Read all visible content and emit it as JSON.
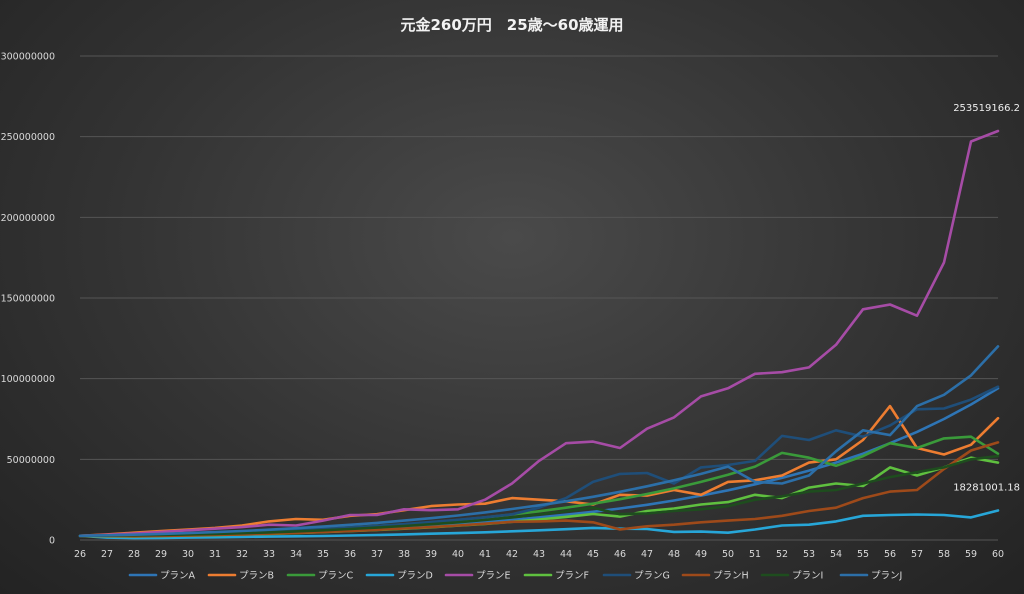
{
  "chart_data": {
    "type": "line",
    "title": "元金260万円　25歳～60歳運用",
    "xlabel": "",
    "ylabel": "",
    "ylim": [
      0,
      300000000
    ],
    "yticks": [
      0,
      50000000,
      100000000,
      150000000,
      200000000,
      250000000,
      300000000
    ],
    "grid": true,
    "legend": "bottom",
    "x": [
      26,
      27,
      28,
      29,
      30,
      31,
      32,
      33,
      34,
      35,
      36,
      37,
      38,
      39,
      40,
      41,
      42,
      43,
      44,
      45,
      46,
      47,
      48,
      49,
      50,
      51,
      52,
      53,
      54,
      55,
      56,
      57,
      58,
      59,
      60
    ],
    "series": [
      {
        "name": "プランA",
        "color": "#2e75b6",
        "values": [
          2600000,
          2700000,
          2900000,
          3200000,
          3500000,
          3800000,
          4200000,
          4700000,
          5200000,
          5800000,
          6500000,
          7200000,
          8000000,
          9000000,
          10000000,
          11200000,
          12500000,
          14000000,
          15700000,
          17500000,
          19500000,
          21800000,
          24500000,
          27500000,
          30800000,
          34500000,
          38500000,
          43000000,
          48000000,
          53500000,
          60000000,
          67000000,
          75000000,
          84000000,
          94000000
        ]
      },
      {
        "name": "プランB",
        "color": "#ed7d31",
        "values": [
          2600000,
          3500000,
          4500000,
          5500000,
          6500000,
          7500000,
          9000000,
          11500000,
          13000000,
          12500000,
          15000000,
          16000000,
          18500000,
          21000000,
          22000000,
          22500000,
          26000000,
          25000000,
          24000000,
          22000000,
          28000000,
          27500000,
          31000000,
          28000000,
          36000000,
          37000000,
          40000000,
          48000000,
          50000000,
          62000000,
          83000000,
          57000000,
          53000000,
          59000000,
          75500000
        ]
      },
      {
        "name": "プランC",
        "color": "#3a9a3a",
        "values": [
          2600000,
          2800000,
          3000000,
          3300000,
          3700000,
          4100000,
          4600000,
          5200000,
          5900000,
          6700000,
          7600000,
          8600000,
          9700000,
          11000000,
          12400000,
          14000000,
          15800000,
          17800000,
          20000000,
          22500000,
          25300000,
          28500000,
          32000000,
          36000000,
          40500000,
          45500000,
          54000000,
          51000000,
          46000000,
          52000000,
          60000000,
          57000000,
          63000000,
          64000000,
          53500000
        ]
      },
      {
        "name": "プランD",
        "color": "#27a6d8",
        "values": [
          2600000,
          1500000,
          1200000,
          1300000,
          1500000,
          1700000,
          1900000,
          2100000,
          2300000,
          2500000,
          2800000,
          3100000,
          3500000,
          3900000,
          4300000,
          4800000,
          5400000,
          6000000,
          6700000,
          7500000,
          7000000,
          6800000,
          5000000,
          5200000,
          4500000,
          6500000,
          9000000,
          9500000,
          11500000,
          15000000,
          15500000,
          15800000,
          15500000,
          14000000,
          18281001.18
        ]
      },
      {
        "name": "プランE",
        "color": "#a64ca6",
        "values": [
          2600000,
          3200000,
          4000000,
          5000000,
          6000000,
          7000000,
          8000000,
          9500000,
          9000000,
          12000000,
          15500000,
          15500000,
          19000000,
          18500000,
          19000000,
          25000000,
          35000000,
          49000000,
          60000000,
          61000000,
          57000000,
          69000000,
          76000000,
          89000000,
          94000000,
          103000000,
          104000000,
          107000000,
          121000000,
          143000000,
          146000000,
          139000000,
          172000000,
          247000000,
          253519166.2
        ]
      },
      {
        "name": "プランF",
        "color": "#5fc03f",
        "values": [
          2600000,
          2300000,
          2200000,
          2400000,
          2700000,
          3000000,
          3400000,
          3800000,
          4300000,
          4900000,
          5500000,
          6200000,
          7000000,
          7900000,
          8900000,
          10000000,
          11300000,
          12700000,
          14300000,
          16100000,
          14500000,
          18000000,
          19500000,
          22000000,
          23500000,
          28000000,
          26000000,
          32500000,
          35000000,
          33500000,
          45000000,
          40000000,
          45000000,
          51000000,
          48000000
        ]
      },
      {
        "name": "プランG",
        "color": "#1f4e79",
        "values": [
          2600000,
          2800000,
          3100000,
          3400000,
          3800000,
          4200000,
          4700000,
          5300000,
          6000000,
          6800000,
          7700000,
          8700000,
          9800000,
          11100000,
          12500000,
          14100000,
          15900000,
          20000000,
          26000000,
          36000000,
          41000000,
          41500000,
          35000000,
          45000000,
          46500000,
          49000000,
          64500000,
          62000000,
          68000000,
          64000000,
          71000000,
          81000000,
          81500000,
          87000000,
          95000000
        ]
      },
      {
        "name": "プランH",
        "color": "#9e4a1a",
        "values": [
          2600000,
          2400000,
          2300000,
          2500000,
          2800000,
          3100000,
          3500000,
          3900000,
          4400000,
          5000000,
          5600000,
          6300000,
          7100000,
          8000000,
          9000000,
          10100000,
          11300000,
          11500000,
          12000000,
          11000000,
          6500000,
          8500000,
          9500000,
          11000000,
          12000000,
          13000000,
          15000000,
          18000000,
          20000000,
          26000000,
          30000000,
          31000000,
          44000000,
          55500000,
          60500000
        ]
      },
      {
        "name": "プランI",
        "color": "#1e4d1e",
        "values": [
          2600000,
          2700000,
          2900000,
          3100000,
          3400000,
          3800000,
          4200000,
          4700000,
          5300000,
          6000000,
          6800000,
          7700000,
          8700000,
          9800000,
          11000000,
          12400000,
          14000000,
          15800000,
          17800000,
          20000000,
          16000000,
          16500000,
          18000000,
          19000000,
          21000000,
          25000000,
          27000000,
          30000000,
          31000000,
          35000000,
          39000000,
          42000000,
          45000000,
          50000000,
          52000000
        ]
      },
      {
        "name": "プランJ",
        "color": "#2c6fa8",
        "values": [
          2600000,
          2900000,
          3300000,
          3800000,
          4300000,
          4900000,
          5600000,
          6400000,
          7300000,
          8300000,
          9400000,
          10600000,
          12000000,
          13500000,
          15200000,
          17100000,
          19200000,
          21500000,
          24000000,
          26800000,
          29900000,
          33300000,
          37000000,
          41000000,
          45500000,
          36000000,
          35000000,
          40000000,
          55000000,
          68000000,
          65000000,
          83000000,
          90000000,
          102000000,
          120000000
        ]
      }
    ],
    "data_labels": [
      {
        "series": "プランE",
        "x": 60,
        "text": "253519166.2"
      },
      {
        "series": "プランD",
        "x": 60,
        "text": "18281001.18"
      }
    ]
  }
}
